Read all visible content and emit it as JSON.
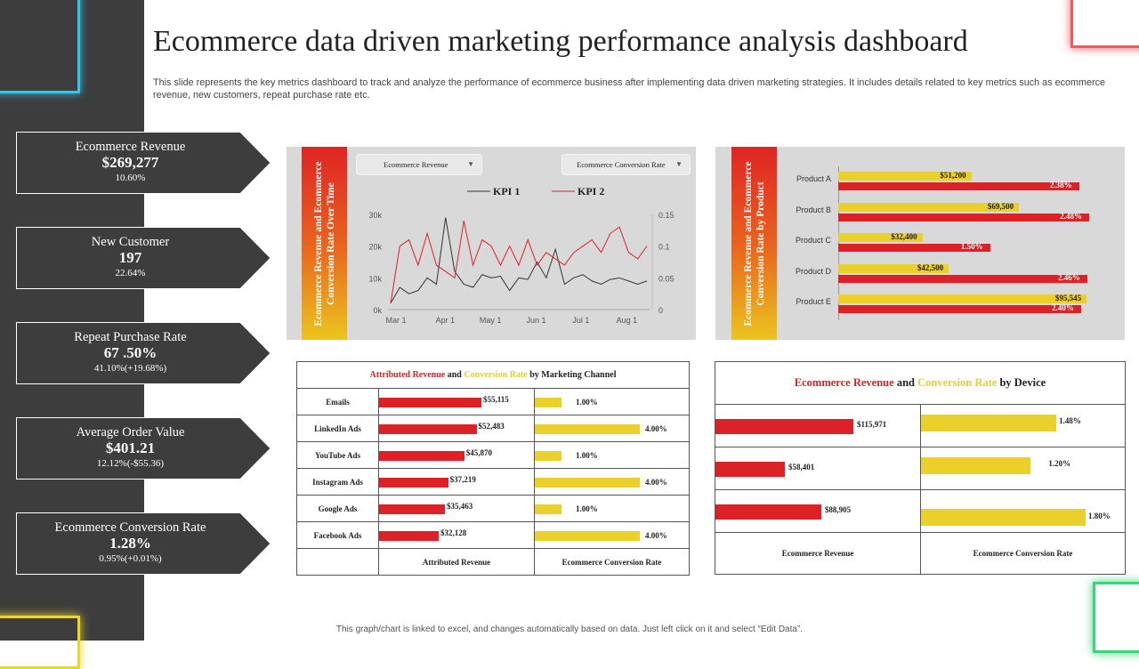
{
  "header": {
    "title": "Ecommerce data driven marketing performance analysis dashboard",
    "subtitle": "This slide represents the key metrics dashboard to track and analyze the performance of ecommerce business after implementing data driven marketing strategies. It includes details related to key metrics such as ecommerce revenue, new customers, repeat purchase rate etc."
  },
  "kpis": [
    {
      "title": "Ecommerce Revenue",
      "value": "$269,277",
      "sub": "10.60%"
    },
    {
      "title": "New Customer",
      "value": "197",
      "sub": "22.64%"
    },
    {
      "title": "Repeat Purchase Rate",
      "value": "67 .50%",
      "sub": "41.10%(+19.68%)"
    },
    {
      "title": "Average Order Value",
      "value": "$401.21",
      "sub": "12.12%(-$55.36)"
    },
    {
      "title": "Ecommerce Conversion Rate",
      "value": "1.28%",
      "sub": "0.95%(+0.01%)"
    }
  ],
  "colors": {
    "red": "#dc2127",
    "yellow": "#ebcf2a",
    "dark": "#3d3d3d",
    "panel": "#d9d9d9"
  },
  "chart_data": [
    {
      "type": "line",
      "title": "Ecommerce Revenue and Ecommerce Conversion Rate Over Time",
      "dropdowns": {
        "left": "Ecommerce Revenue",
        "right": "Ecommerce Conversion Rate"
      },
      "x_ticks": [
        "Mar 1",
        "Apr 1",
        "May 1",
        "Jun 1",
        "Jul 1",
        "Aug 1"
      ],
      "y_left": {
        "ticks": [
          "0k",
          "10k",
          "20k",
          "30k"
        ],
        "range": [
          0,
          30000
        ]
      },
      "y_right": {
        "ticks": [
          "0",
          "0.05",
          "0.1",
          "0.15"
        ],
        "range": [
          0,
          0.15
        ]
      },
      "legend": "top",
      "series": [
        {
          "name": "KPI 1",
          "color": "#333333",
          "axis": "left",
          "values": [
            2000,
            7000,
            5000,
            6000,
            10000,
            8000,
            29000,
            12000,
            8000,
            7000,
            11000,
            10000,
            10500,
            6000,
            10000,
            9500,
            15000,
            10000,
            19000,
            8000,
            10000,
            11000,
            9000,
            8000,
            9500,
            10000,
            9000,
            8000,
            9000
          ]
        },
        {
          "name": "KPI 2",
          "color": "#dc2127",
          "axis": "right",
          "values": [
            0.01,
            0.1,
            0.11,
            0.07,
            0.12,
            0.07,
            0.06,
            0.05,
            0.14,
            0.07,
            0.11,
            0.1,
            0.07,
            0.1,
            0.07,
            0.11,
            0.07,
            0.09,
            0.08,
            0.07,
            0.09,
            0.1,
            0.11,
            0.09,
            0.12,
            0.13,
            0.09,
            0.08,
            0.1
          ]
        }
      ]
    },
    {
      "type": "bar",
      "title": "Ecommerce Revenue and Ecommerce Conversion Rate by Product",
      "categories": [
        "Product A",
        "Product B",
        "Product C",
        "Product D",
        "Product E"
      ],
      "series": [
        {
          "color": "#ebcf2a",
          "values": [
            51200,
            69500,
            32400,
            42500,
            95545
          ],
          "labels": [
            "$51,200",
            "$69,500",
            "$32,400",
            "$42,500",
            "$95,545"
          ]
        },
        {
          "color": "#dc2127",
          "values": [
            2.38,
            2.48,
            1.5,
            2.46,
            2.4
          ],
          "labels": [
            "2.38%",
            "2.48%",
            "1.50%",
            "2.46%",
            "2.40%"
          ]
        }
      ]
    },
    {
      "type": "bar",
      "title_parts": [
        "Attributed Revenue",
        " and ",
        "Conversion Rate",
        " by Marketing Channel"
      ],
      "categories": [
        "Emails",
        "LinkedIn Ads",
        "YouTube Ads",
        "Instagram Ads",
        "Google Ads",
        "Facebook Ads"
      ],
      "col_headers": [
        "Attributed Revenue",
        "Ecommerce Conversion Rate"
      ],
      "revenue": [
        55115,
        52483,
        45870,
        37219,
        35463,
        32128
      ],
      "revenue_labels": [
        "$55,115",
        "$52,483",
        "$45,870",
        "$37,219",
        "$35,463",
        "$32,128"
      ],
      "conversion": [
        1,
        4,
        1,
        4,
        1,
        4
      ],
      "conversion_labels": [
        "1.00%",
        "4.00%",
        "1.00%",
        "4.00%",
        "1.00%",
        "4.00%"
      ]
    },
    {
      "type": "bar",
      "title_parts": [
        "Ecommerce Revenue",
        " and ",
        "Conversion Rate",
        " by Device"
      ],
      "col_headers": [
        "Ecommerce Revenue",
        "Ecommerce Conversion Rate"
      ],
      "revenue": [
        115971,
        58401,
        88905
      ],
      "revenue_labels": [
        "$115,971",
        "$58,401",
        "$88,905"
      ],
      "conversion": [
        1.48,
        1.2,
        1.8
      ],
      "conversion_labels": [
        "1.48%",
        "1.20%",
        "1.80%"
      ]
    }
  ],
  "footer": {
    "note": "This graph/chart is linked to excel, and changes automatically based on data. Just left click on it and select “Edit Data”."
  }
}
